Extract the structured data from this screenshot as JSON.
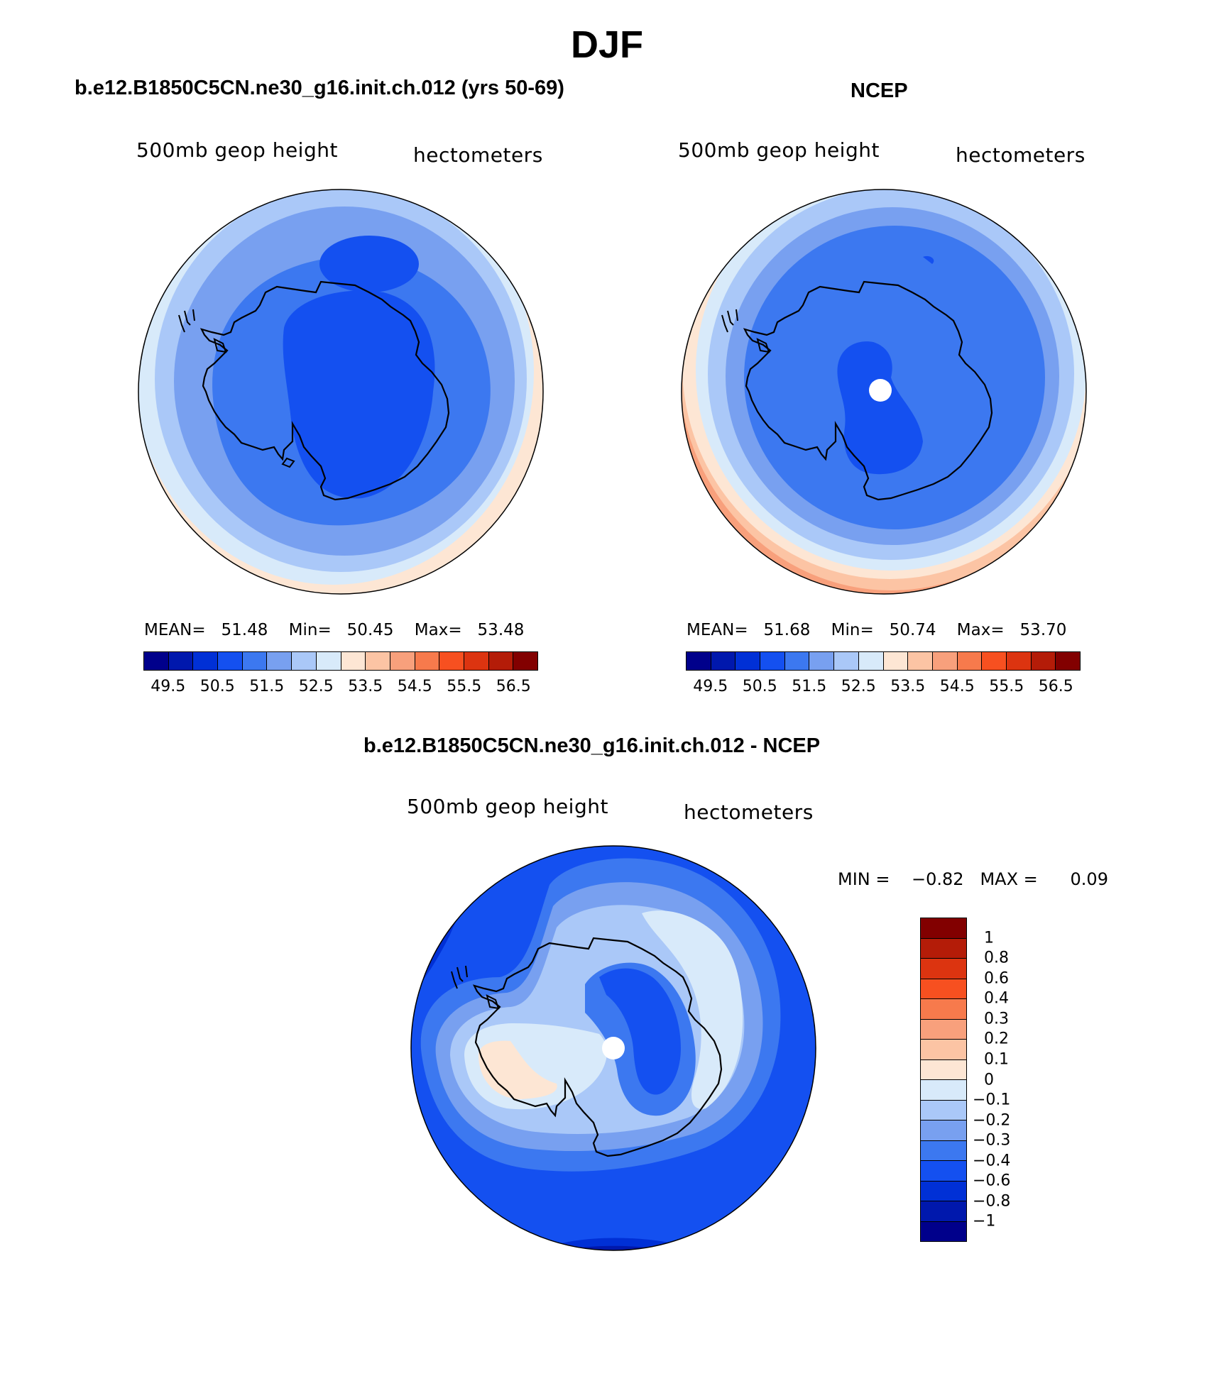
{
  "title": "DJF",
  "panels": [
    {
      "title": "b.e12.B1850C5CN.ne30_g16.init.ch.012 (yrs 50-69)",
      "variable": "500mb geop height",
      "units": "hectometers",
      "stats": {
        "mean_label": "MEAN=",
        "mean": "51.48",
        "min_label": "Min=",
        "min": "50.45",
        "max_label": "Max=",
        "max": "53.48"
      }
    },
    {
      "title": "NCEP",
      "variable": "500mb geop height",
      "units": "hectometers",
      "stats": {
        "mean_label": "MEAN=",
        "mean": "51.68",
        "min_label": "Min=",
        "min": "50.74",
        "max_label": "Max=",
        "max": "53.70"
      }
    },
    {
      "title": "b.e12.B1850C5CN.ne30_g16.init.ch.012 - NCEP",
      "variable": "500mb geop height",
      "units": "hectometers",
      "stats": {
        "min_label": "MIN =",
        "min": "−0.82",
        "max_label": "MAX =",
        "max": "0.09"
      }
    }
  ],
  "colorbar_top": {
    "colors": [
      "#00008b",
      "#0018ad",
      "#0030d6",
      "#1450f0",
      "#3c78f0",
      "#78a0f0",
      "#aac8f8",
      "#d8eafa",
      "#fde6d4",
      "#fcc4a4",
      "#f8a07c",
      "#f77a4c",
      "#f75020",
      "#dc3410",
      "#b41c08",
      "#820000"
    ],
    "labels": [
      "49.5",
      "50.5",
      "51.5",
      "52.5",
      "53.5",
      "54.5",
      "55.5",
      "56.5"
    ]
  },
  "colorbar_diff": {
    "colors": [
      "#820000",
      "#b41c08",
      "#dc3410",
      "#f75020",
      "#f77a4c",
      "#f8a07c",
      "#fcc4a4",
      "#fde6d4",
      "#d8eafa",
      "#aac8f8",
      "#78a0f0",
      "#3c78f0",
      "#1450f0",
      "#0030d6",
      "#0018ad",
      "#00008b"
    ],
    "labels": [
      "1",
      "0.8",
      "0.6",
      "0.4",
      "0.3",
      "0.2",
      "0.1",
      "0",
      "−0.1",
      "−0.2",
      "−0.3",
      "−0.4",
      "−0.6",
      "−0.8",
      "−1"
    ]
  }
}
